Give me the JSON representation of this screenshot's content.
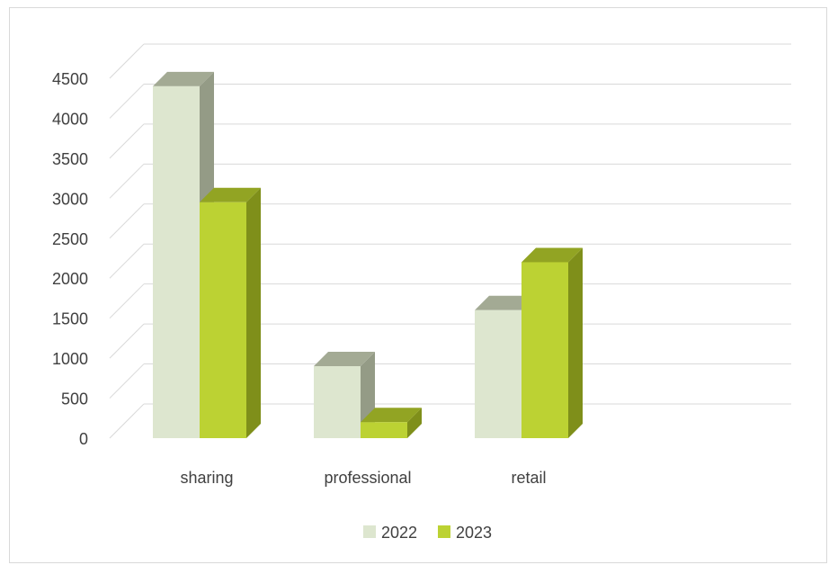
{
  "chart_data": {
    "type": "bar",
    "style": "3d-clustered-column",
    "categories": [
      "sharing",
      "professional",
      "retail"
    ],
    "series": [
      {
        "name": "2022",
        "values": [
          4400,
          900,
          1600
        ],
        "color": "#dde6cf",
        "side_color": "#949b86",
        "top_color": "#a3aa94"
      },
      {
        "name": "2023",
        "values": [
          2950,
          200,
          2200
        ],
        "color": "#bcd233",
        "side_color": "#7f8f1a",
        "top_color": "#92a423"
      }
    ],
    "ylim": [
      0,
      4500
    ],
    "yticks": [
      "0",
      "500",
      "1000",
      "1500",
      "2000",
      "2500",
      "3000",
      "3500",
      "4000",
      "4500"
    ],
    "grid": true,
    "legend": "bottom",
    "title": "",
    "xlabel": "",
    "ylabel": ""
  }
}
